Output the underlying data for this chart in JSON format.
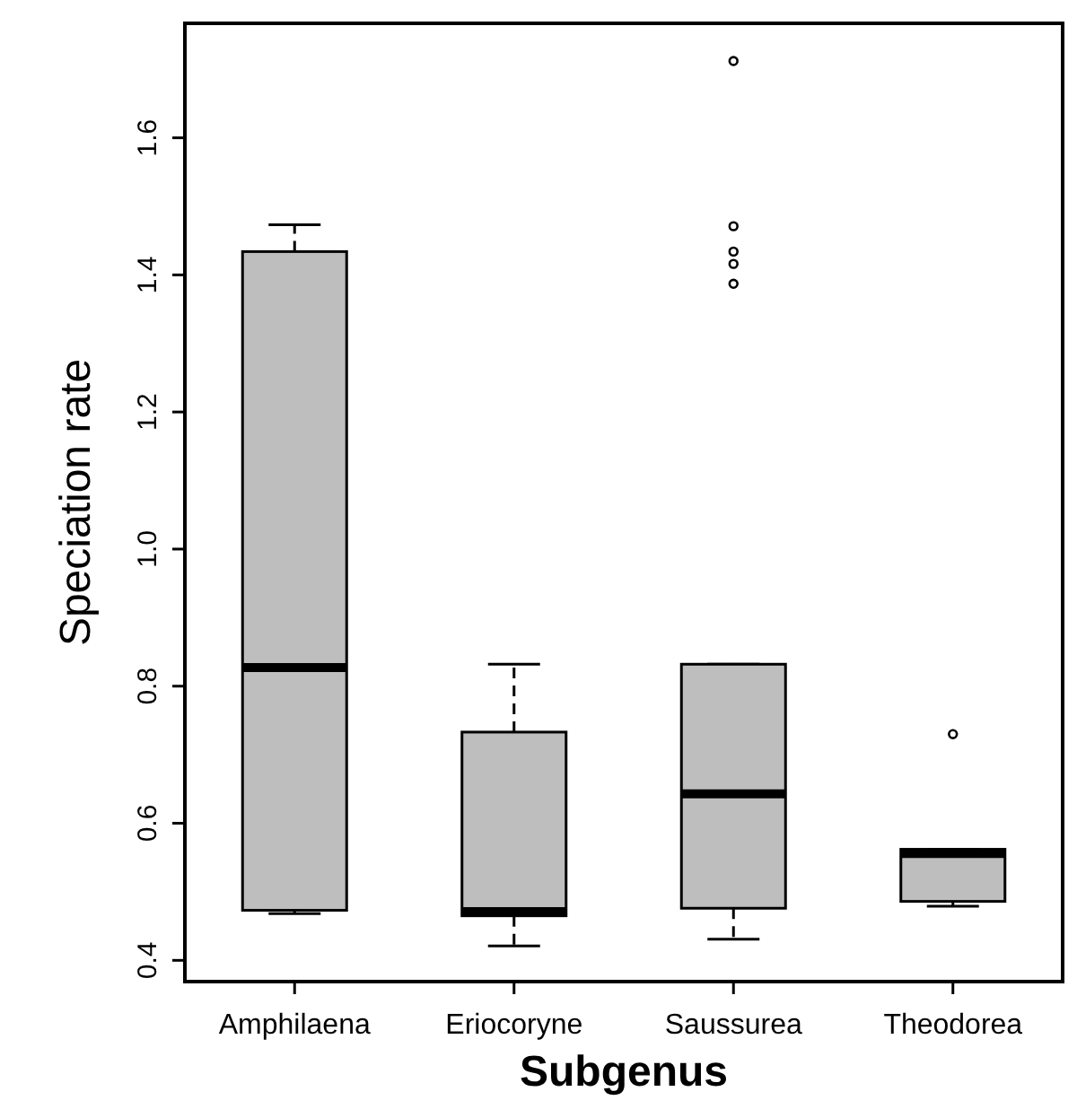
{
  "chart_data": {
    "type": "box",
    "xlabel": "Subgenus",
    "ylabel": "Speciation rate",
    "categories": [
      "Amphilaena",
      "Eriocoryne",
      "Saussurea",
      "Theodorea"
    ],
    "color": "#bebebe",
    "boxes": [
      {
        "low": 0.468,
        "q1": 0.473,
        "median": 0.827,
        "q3": 1.434,
        "high": 1.473
      },
      {
        "low": 0.421,
        "q1": 0.465,
        "median": 0.471,
        "q3": 0.733,
        "high": 0.832
      },
      {
        "low": 0.431,
        "q1": 0.476,
        "median": 0.643,
        "q3": 0.832,
        "high": 0.832,
        "outliers": [
          1.712,
          1.471,
          1.434,
          1.416,
          1.387
        ]
      },
      {
        "low": 0.479,
        "q1": 0.486,
        "median": 0.556,
        "q3": 0.562,
        "high": 0.562,
        "outliers": [
          0.73
        ]
      }
    ],
    "ylim": [
      0.369,
      1.767
    ],
    "yticks": [
      {
        "value": 0.4,
        "label": "0.4"
      },
      {
        "value": 0.6,
        "label": "0.6"
      },
      {
        "value": 0.8,
        "label": "0.8"
      },
      {
        "value": 1,
        "label": "1.0"
      },
      {
        "value": 1.2,
        "label": "1.2"
      },
      {
        "value": 1.4,
        "label": "1.4"
      },
      {
        "value": 1.6,
        "label": "1.6"
      }
    ],
    "line_style": "dashed"
  }
}
